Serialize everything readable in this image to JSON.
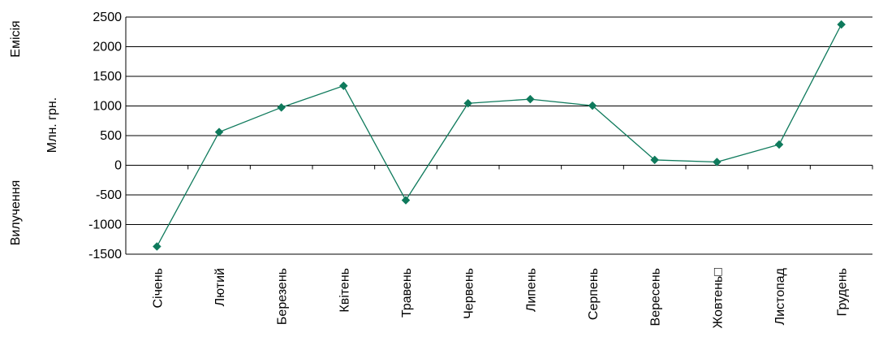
{
  "chart_data": {
    "type": "line",
    "categories": [
      "Січень",
      "Лютий",
      "Березень",
      "Квітень",
      "Травень",
      "Червень",
      "Липень",
      "Серпень",
      "Вересень",
      "Жовтень□",
      "Листопад",
      "Грудень"
    ],
    "series": [
      {
        "values": [
          -1370,
          560,
          975,
          1340,
          -590,
          1045,
          1115,
          1005,
          90,
          55,
          350,
          2375
        ]
      }
    ],
    "ylabel": "Млн. грн.",
    "ylim": [
      -1500,
      2500
    ],
    "yticks": [
      2500,
      2000,
      1500,
      1000,
      500,
      0,
      -500,
      -1000,
      -1500
    ],
    "side_labels": {
      "top": "Емісія",
      "bottom": "Вилучення"
    },
    "grid": true,
    "colors": {
      "series": "#0f7a5c",
      "grid": "#000000"
    }
  }
}
